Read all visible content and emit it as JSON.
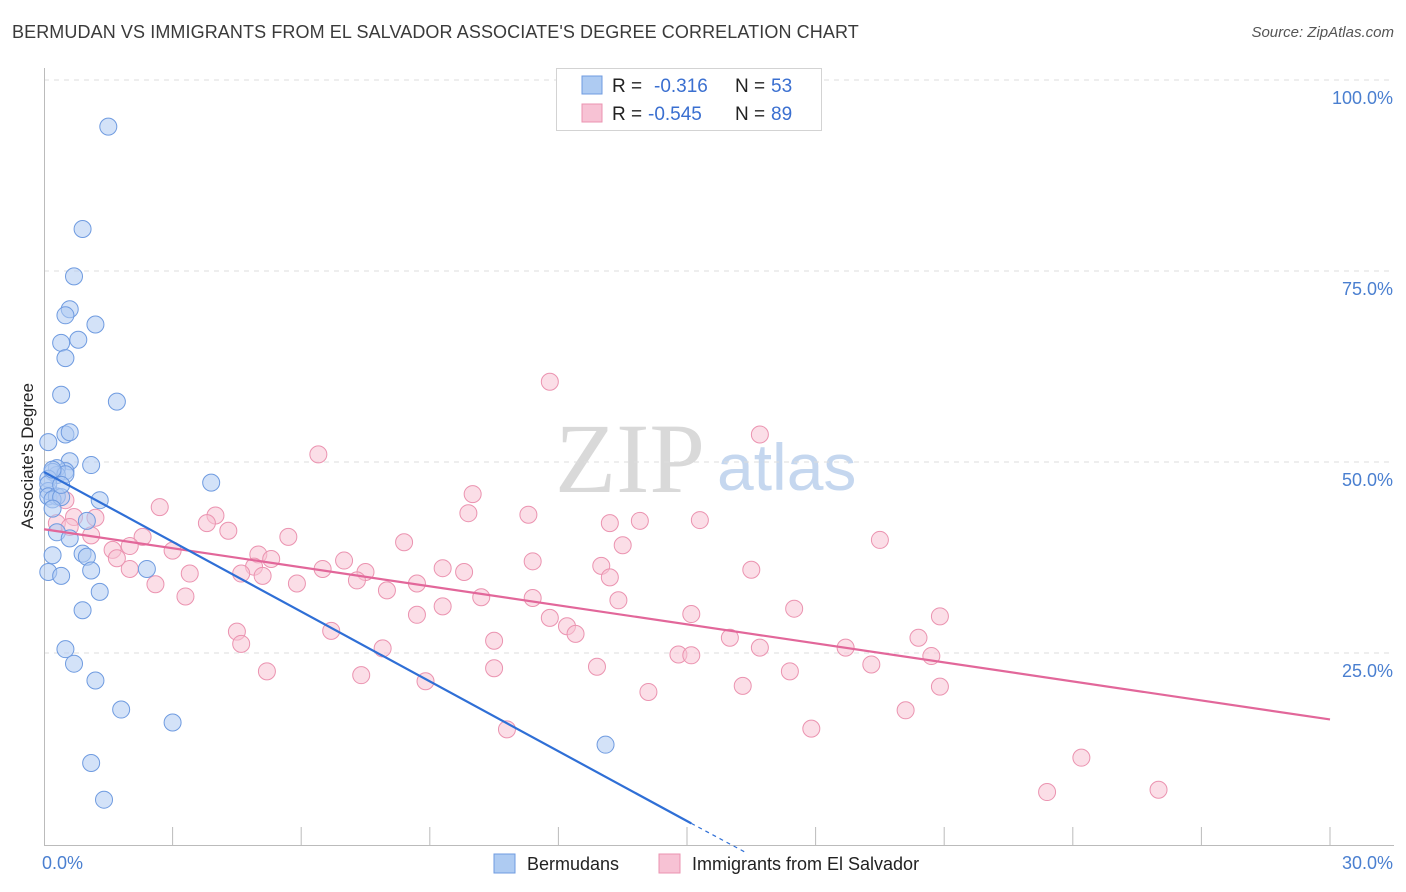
{
  "header": {
    "title": "BERMUDAN VS IMMIGRANTS FROM EL SALVADOR ASSOCIATE'S DEGREE CORRELATION CHART",
    "source": "Source: ZipAtlas.com"
  },
  "watermark": {
    "zip": "ZIP",
    "atlas": "atlas"
  },
  "legend_top": {
    "rows": [
      {
        "r_label": "R =",
        "r_value": "-0.316",
        "n_label": "N =",
        "n_value": "53"
      },
      {
        "r_label": "R =",
        "r_value": "-0.545",
        "n_label": "N =",
        "n_value": "89"
      }
    ]
  },
  "legend_bottom": {
    "items": [
      "Bermudans",
      "Immigrants from El Salvador"
    ]
  },
  "colors": {
    "blue_fill": "#aecbf2",
    "blue_stroke": "#6f9be0",
    "blue_line": "#2f6fd6",
    "pink_fill": "#f7c2d4",
    "pink_stroke": "#eb93b0",
    "pink_line": "#e2679a",
    "grid": "#dddddd",
    "tick_text": "#4a7fd0"
  },
  "chart_data": {
    "type": "scatter",
    "title": "BERMUDAN VS IMMIGRANTS FROM EL SALVADOR ASSOCIATE'S DEGREE CORRELATION CHART",
    "xlabel": "",
    "ylabel": "Associate's Degree",
    "xlim": [
      0,
      30
    ],
    "ylim": [
      0,
      100
    ],
    "x_tick_labels": [
      "0.0%",
      "30.0%"
    ],
    "y_tick_labels": [
      "100.0%",
      "75.0%",
      "50.0%",
      "25.0%"
    ],
    "y_ticks": [
      100,
      75,
      50,
      25
    ],
    "grid": true,
    "series": [
      {
        "name": "Bermudans",
        "r": -0.316,
        "n": 53,
        "trend": {
          "x": [
            0,
            15.1
          ],
          "y": [
            48.7,
            2.7
          ]
        },
        "trend_dashed": {
          "x": [
            15.1,
            16.4
          ],
          "y": [
            2.7,
            -1.2
          ]
        },
        "points": [
          [
            1.5,
            93.9
          ],
          [
            0.9,
            80.5
          ],
          [
            0.7,
            74.3
          ],
          [
            0.6,
            70.0
          ],
          [
            0.5,
            69.2
          ],
          [
            1.2,
            68.0
          ],
          [
            0.8,
            66.0
          ],
          [
            0.4,
            65.6
          ],
          [
            0.5,
            63.6
          ],
          [
            1.7,
            57.9
          ],
          [
            0.4,
            58.8
          ],
          [
            0.5,
            53.6
          ],
          [
            0.6,
            53.9
          ],
          [
            0.1,
            52.6
          ],
          [
            1.1,
            49.6
          ],
          [
            0.6,
            50.1
          ],
          [
            0.5,
            48.8
          ],
          [
            0.3,
            49.2
          ],
          [
            0.3,
            48.3
          ],
          [
            0.2,
            48.7
          ],
          [
            0.1,
            47.8
          ],
          [
            0.5,
            48.4
          ],
          [
            0.1,
            46.2
          ],
          [
            0.1,
            47.1
          ],
          [
            0.1,
            45.5
          ],
          [
            0.3,
            45.5
          ],
          [
            0.2,
            45.1
          ],
          [
            0.4,
            45.4
          ],
          [
            3.9,
            47.3
          ],
          [
            1.3,
            45.0
          ],
          [
            0.2,
            43.9
          ],
          [
            1.0,
            42.3
          ],
          [
            0.3,
            40.8
          ],
          [
            0.6,
            40.0
          ],
          [
            0.2,
            37.8
          ],
          [
            0.9,
            38.0
          ],
          [
            1.0,
            37.6
          ],
          [
            1.1,
            35.8
          ],
          [
            0.1,
            35.6
          ],
          [
            0.4,
            35.1
          ],
          [
            2.4,
            36.0
          ],
          [
            1.3,
            33.0
          ],
          [
            0.9,
            30.6
          ],
          [
            0.5,
            25.5
          ],
          [
            0.7,
            23.6
          ],
          [
            1.2,
            21.4
          ],
          [
            1.8,
            17.6
          ],
          [
            3.0,
            15.9
          ],
          [
            1.1,
            10.6
          ],
          [
            1.4,
            5.8
          ],
          [
            13.1,
            13.0
          ],
          [
            0.2,
            49.0
          ],
          [
            0.4,
            47.0
          ]
        ]
      },
      {
        "name": "Immigrants from El Salvador",
        "r": -0.545,
        "n": 89,
        "trend": {
          "x": [
            0,
            30
          ],
          "y": [
            41.2,
            16.3
          ]
        },
        "points": [
          [
            11.8,
            60.5
          ],
          [
            16.7,
            53.6
          ],
          [
            6.4,
            51.0
          ],
          [
            10.0,
            45.8
          ],
          [
            2.7,
            44.1
          ],
          [
            4.0,
            43.0
          ],
          [
            3.8,
            42.0
          ],
          [
            9.9,
            43.3
          ],
          [
            11.3,
            43.1
          ],
          [
            13.9,
            42.3
          ],
          [
            15.3,
            42.4
          ],
          [
            13.2,
            42.0
          ],
          [
            0.7,
            42.8
          ],
          [
            1.2,
            42.7
          ],
          [
            0.5,
            45.0
          ],
          [
            1.1,
            40.4
          ],
          [
            2.3,
            40.2
          ],
          [
            5.7,
            40.2
          ],
          [
            8.4,
            39.5
          ],
          [
            13.5,
            39.1
          ],
          [
            19.5,
            39.8
          ],
          [
            1.6,
            38.5
          ],
          [
            3.0,
            38.4
          ],
          [
            5.0,
            37.9
          ],
          [
            7.0,
            37.1
          ],
          [
            11.4,
            37.0
          ],
          [
            13.0,
            36.4
          ],
          [
            16.5,
            35.9
          ],
          [
            2.0,
            36.0
          ],
          [
            4.9,
            36.3
          ],
          [
            5.3,
            37.3
          ],
          [
            6.5,
            36.0
          ],
          [
            7.5,
            35.6
          ],
          [
            9.3,
            36.1
          ],
          [
            9.8,
            35.6
          ],
          [
            1.7,
            37.4
          ],
          [
            2.6,
            34.0
          ],
          [
            3.4,
            35.4
          ],
          [
            4.6,
            35.4
          ],
          [
            5.1,
            35.1
          ],
          [
            5.9,
            34.1
          ],
          [
            7.3,
            34.5
          ],
          [
            8.7,
            34.1
          ],
          [
            8.0,
            33.2
          ],
          [
            13.2,
            34.9
          ],
          [
            3.3,
            32.4
          ],
          [
            10.2,
            32.3
          ],
          [
            11.4,
            32.2
          ],
          [
            13.4,
            31.9
          ],
          [
            9.3,
            31.1
          ],
          [
            8.7,
            30.0
          ],
          [
            15.1,
            30.1
          ],
          [
            17.5,
            30.8
          ],
          [
            20.9,
            29.8
          ],
          [
            11.8,
            29.6
          ],
          [
            12.2,
            28.5
          ],
          [
            12.4,
            27.5
          ],
          [
            6.7,
            27.9
          ],
          [
            4.5,
            27.8
          ],
          [
            10.5,
            26.6
          ],
          [
            4.6,
            26.2
          ],
          [
            16.0,
            27.0
          ],
          [
            20.4,
            27.0
          ],
          [
            7.9,
            25.6
          ],
          [
            16.7,
            25.7
          ],
          [
            18.7,
            25.7
          ],
          [
            14.8,
            24.8
          ],
          [
            15.1,
            24.7
          ],
          [
            20.7,
            24.6
          ],
          [
            8.9,
            21.3
          ],
          [
            12.9,
            23.2
          ],
          [
            10.5,
            23.0
          ],
          [
            19.3,
            23.5
          ],
          [
            5.2,
            22.6
          ],
          [
            7.4,
            22.1
          ],
          [
            17.4,
            22.6
          ],
          [
            16.3,
            20.7
          ],
          [
            14.1,
            19.9
          ],
          [
            20.9,
            20.6
          ],
          [
            20.1,
            17.5
          ],
          [
            10.8,
            15.0
          ],
          [
            17.9,
            15.1
          ],
          [
            24.2,
            11.3
          ],
          [
            23.4,
            6.8
          ],
          [
            26.0,
            7.1
          ],
          [
            0.3,
            42.0
          ],
          [
            0.6,
            41.5
          ],
          [
            2.0,
            39.0
          ],
          [
            4.3,
            41.0
          ]
        ]
      }
    ]
  }
}
